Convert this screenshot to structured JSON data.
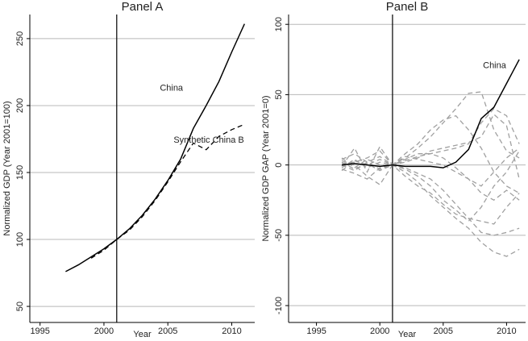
{
  "chart_data": [
    {
      "type": "line",
      "title": "Panel A",
      "x_label": "Year",
      "y_label": "Normalized GDP (Year 2001=100)",
      "x": [
        1997,
        1998,
        1999,
        2000,
        2001,
        2002,
        2003,
        2004,
        2005,
        2006,
        2007,
        2008,
        2009,
        2010,
        2011
      ],
      "xlim": [
        1994.2,
        2011.8
      ],
      "xticks": [
        1995,
        2000,
        2005,
        2010
      ],
      "ylim": [
        38,
        268
      ],
      "yticks": [
        50,
        100,
        150,
        200,
        250
      ],
      "grid": true,
      "vline": 2001,
      "series": [
        {
          "name": "China",
          "color": "#000000",
          "dash": false,
          "values": [
            76,
            81,
            87,
            93,
            100,
            108,
            118,
            130,
            144,
            160,
            183,
            200,
            218,
            240,
            261
          ]
        },
        {
          "name": "Synthetic China B",
          "color": "#000000",
          "dash": true,
          "values": [
            null,
            null,
            86,
            92,
            100,
            107,
            117,
            129,
            143,
            158,
            172,
            167,
            177,
            182,
            186
          ]
        }
      ]
    },
    {
      "type": "line",
      "title": "Panel B",
      "x_label": "Year",
      "y_label": "Normalized GDP GAP (Year 2001=0)",
      "x": [
        1997,
        1998,
        1999,
        2000,
        2001,
        2002,
        2003,
        2004,
        2005,
        2006,
        2007,
        2008,
        2009,
        2010,
        2011
      ],
      "xlim": [
        1992.8,
        2011.5
      ],
      "xticks": [
        1995,
        2000,
        2005,
        2010
      ],
      "ylim": [
        -112,
        107
      ],
      "yticks": [
        -100,
        -50,
        0,
        50,
        100
      ],
      "grid": true,
      "vline": 2001,
      "series": [
        {
          "color": "#a0a0a0",
          "dash": true,
          "values": [
            2,
            -3,
            1,
            -4,
            0,
            5,
            12,
            20,
            30,
            40,
            51,
            52,
            25,
            10,
            5
          ]
        },
        {
          "color": "#a0a0a0",
          "dash": true,
          "values": [
            -2,
            4,
            -2,
            2,
            0,
            8,
            15,
            25,
            32,
            35,
            25,
            12,
            -5,
            -15,
            -20
          ]
        },
        {
          "color": "#a0a0a0",
          "dash": true,
          "values": [
            4,
            8,
            2,
            -3,
            0,
            -5,
            -12,
            -22,
            -30,
            -38,
            -45,
            -55,
            -62,
            -65,
            -60
          ]
        },
        {
          "color": "#a0a0a0",
          "dash": true,
          "values": [
            -3,
            -6,
            -10,
            -2,
            0,
            -3,
            -8,
            -15,
            -25,
            -32,
            -40,
            -30,
            -15,
            -5,
            10
          ]
        },
        {
          "color": "#a0a0a0",
          "dash": true,
          "values": [
            1,
            2,
            5,
            10,
            0,
            3,
            6,
            8,
            10,
            12,
            15,
            30,
            40,
            35,
            15
          ]
        },
        {
          "color": "#a0a0a0",
          "dash": true,
          "values": [
            -1,
            12,
            -5,
            13,
            0,
            -8,
            -15,
            -20,
            -28,
            -35,
            -38,
            -40,
            -42,
            -30,
            -20
          ]
        },
        {
          "color": "#a0a0a0",
          "dash": true,
          "values": [
            3,
            0,
            -8,
            -14,
            0,
            4,
            8,
            8,
            5,
            -2,
            -10,
            -20,
            -25,
            -18,
            -25
          ]
        },
        {
          "color": "#a0a0a0",
          "dash": true,
          "values": [
            0,
            -4,
            2,
            6,
            0,
            -2,
            -6,
            -10,
            -18,
            -28,
            -38,
            -48,
            -50,
            -48,
            -45
          ]
        },
        {
          "color": "#a0a0a0",
          "dash": true,
          "values": [
            5,
            -2,
            4,
            0,
            0,
            6,
            4,
            2,
            0,
            -5,
            -10,
            -15,
            -5,
            5,
            12
          ]
        },
        {
          "color": "#a0a0a0",
          "dash": true,
          "values": [
            -4,
            3,
            0,
            4,
            0,
            2,
            5,
            10,
            12,
            14,
            16,
            20,
            36,
            28,
            -10
          ]
        },
        {
          "name": "China",
          "color": "#000000",
          "dash": false,
          "values": [
            0,
            1,
            0,
            -1,
            0,
            -1,
            -1,
            -1,
            -2,
            2,
            11,
            33,
            41,
            58,
            75
          ]
        }
      ]
    }
  ]
}
